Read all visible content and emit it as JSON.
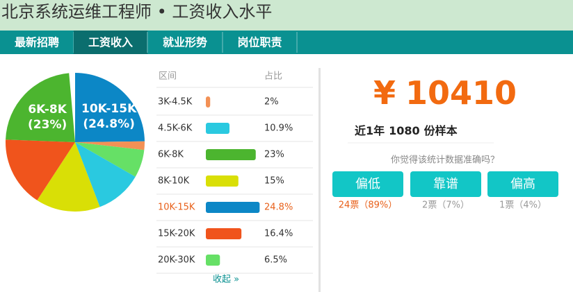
{
  "header": {
    "title": "北京系统运维工程师 • 工资收入水平"
  },
  "nav": {
    "tabs": [
      "最新招聘",
      "工资收入",
      "就业形势",
      "岗位职责"
    ],
    "active": 1
  },
  "table": {
    "headers": [
      "区间",
      "占比"
    ],
    "highlight": 4,
    "collapse_link": "收起 »"
  },
  "chart_data": {
    "type": "pie",
    "categories": [
      "3K-4.5K",
      "4.5K-6K",
      "6K-8K",
      "8K-10K",
      "10K-15K",
      "15K-20K",
      "20K-30K"
    ],
    "values": [
      2,
      10.9,
      23,
      15,
      24.8,
      16.4,
      6.5
    ],
    "value_labels": [
      "2%",
      "10.9%",
      "23%",
      "15%",
      "24.8%",
      "16.4%",
      "6.5%"
    ],
    "colors": [
      "#f39155",
      "#2ac9e0",
      "#4cb52f",
      "#d9df06",
      "#0c87c6",
      "#f0541c",
      "#66e066"
    ],
    "pie_annotations": [
      {
        "slice": 2,
        "lines": [
          "6K-8K",
          "(23%)"
        ]
      },
      {
        "slice": 4,
        "lines": [
          "10K-15K",
          "(24.8%)"
        ]
      }
    ]
  },
  "summary": {
    "currency": "¥",
    "amount": 10410,
    "sample_prefix": "近1年",
    "sample_count": 1080,
    "sample_suffix": "份样本",
    "question": "你觉得该统计数据准确吗？",
    "buttons": [
      {
        "label": "偏低",
        "votes": "24票（89%）"
      },
      {
        "label": "靠谱",
        "votes": "2票（7%）"
      },
      {
        "label": "偏高",
        "votes": "1票（4%）"
      }
    ]
  }
}
